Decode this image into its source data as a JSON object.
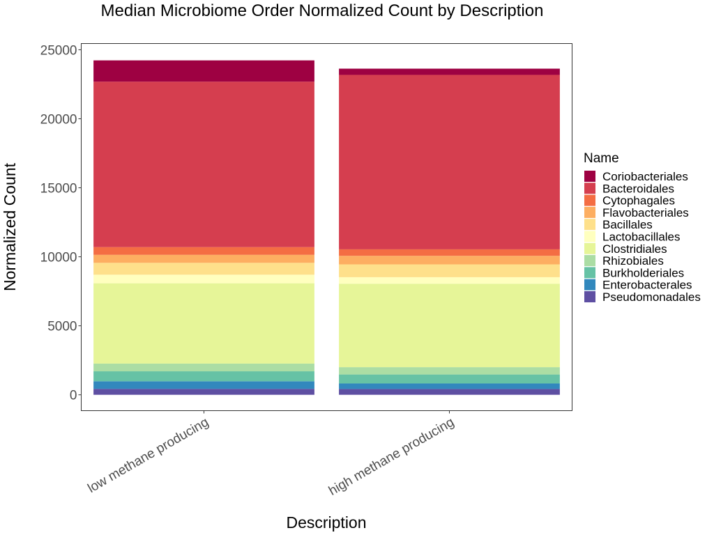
{
  "chart_data": {
    "type": "bar",
    "stacked": true,
    "title": "Median Microbiome Order Normalized Count by Description",
    "xlabel": "Description",
    "ylabel": "Normalized Count",
    "categories": [
      "low methane producing",
      "high methane producing"
    ],
    "ylim": [
      -1150,
      25450
    ],
    "yticks": [
      0,
      5000,
      10000,
      15000,
      20000,
      25000
    ],
    "ytick_labels": [
      "0",
      "5000",
      "10000",
      "15000",
      "20000",
      "25000"
    ],
    "grid": false,
    "legend": {
      "title": "Name",
      "position": "right"
    },
    "series": [
      {
        "name": "Pseudomonadales",
        "color": "#5E4FA2",
        "values": [
          430,
          420
        ]
      },
      {
        "name": "Enterobacterales",
        "color": "#3288BD",
        "values": [
          550,
          400
        ]
      },
      {
        "name": "Burkholderiales",
        "color": "#66C2A5",
        "values": [
          720,
          650
        ]
      },
      {
        "name": "Rhizobiales",
        "color": "#ABDDA4",
        "values": [
          560,
          530
        ]
      },
      {
        "name": "Clostridiales",
        "color": "#E6F598",
        "values": [
          5820,
          6050
        ]
      },
      {
        "name": "Lactobacillales",
        "color": "#FFFFBF",
        "values": [
          620,
          470
        ]
      },
      {
        "name": "Bacillales",
        "color": "#FEE08B",
        "values": [
          860,
          930
        ]
      },
      {
        "name": "Flavobacteriales",
        "color": "#FDAE61",
        "values": [
          580,
          620
        ]
      },
      {
        "name": "Cytophagales",
        "color": "#F46D43",
        "values": [
          560,
          470
        ]
      },
      {
        "name": "Bacteroidales",
        "color": "#D53E4F",
        "values": [
          11990,
          12640
        ]
      },
      {
        "name": "Coriobacteriales",
        "color": "#9E0142",
        "values": [
          1540,
          450
        ]
      }
    ]
  }
}
